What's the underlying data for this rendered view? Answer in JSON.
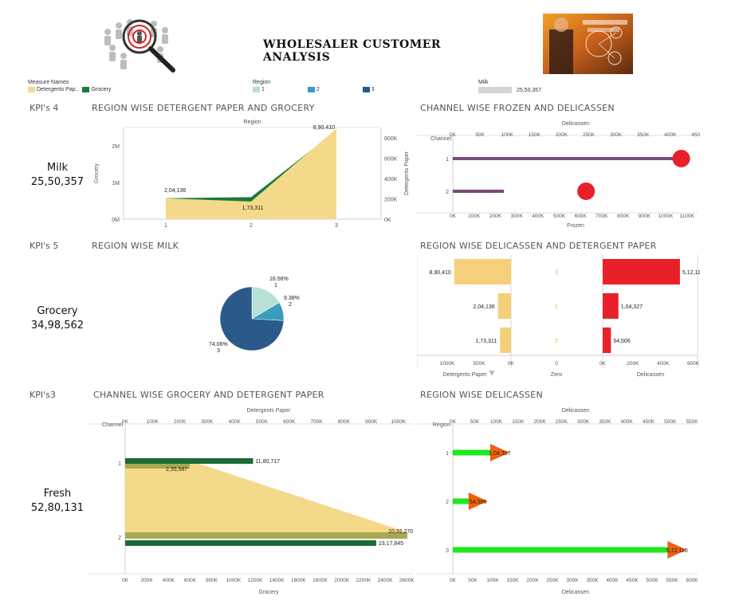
{
  "header": {
    "title": "WHOLESALER CUSTOMER ANALYSIS"
  },
  "legends": {
    "measure_names": {
      "title": "Measure Names",
      "items": [
        {
          "label": "Detergents Pap..",
          "color": "#f5d98b"
        },
        {
          "label": "Grocery",
          "color": "#1a7a3a"
        }
      ]
    },
    "region": {
      "title": "Region",
      "items": [
        {
          "label": "1",
          "color": "#b8e0d8"
        },
        {
          "label": "2",
          "color": "#3a9cbf"
        },
        {
          "label": "3",
          "color": "#2b5a8a"
        }
      ]
    },
    "milk": {
      "title": "Milk",
      "value": "25,50,357"
    }
  },
  "kpis": [
    {
      "section": "KPI's 4",
      "name": "Milk",
      "value": "25,50,357"
    },
    {
      "section": "KPI's 5",
      "name": "Grocery",
      "value": "34,98,562"
    },
    {
      "section": "KPI's3",
      "name": "Fresh",
      "value": "52,80,131"
    }
  ],
  "sections": {
    "s1": "REGION WISE DETERGENT PAPER AND GROCERY",
    "s2": "CHANNEL WISE FROZEN AND DELICASSEN",
    "s3": "REGION WISE MILK",
    "s4": "REGION WISE DELICASSEN AND DETERGENT PAPER",
    "s5": "CHANNEL WISE GROCERY AND DETERGENT PAPER",
    "s6": "REGION WISE DELICASSEN"
  },
  "chart_data": [
    {
      "id": "region_detergent_grocery",
      "type": "area",
      "xlabel": "Region",
      "categories": [
        "1",
        "2",
        "3"
      ],
      "series": [
        {
          "name": "Detergents Paper",
          "values": [
            204136,
            173311,
            890410
          ],
          "color": "#f5d98b",
          "labels": [
            "2,04,136",
            "1,73,311",
            "8,90,410"
          ]
        },
        {
          "name": "Grocery",
          "values": [
            570000,
            600000,
            2420000
          ],
          "color": "#1a7a3a"
        }
      ],
      "left_axis": {
        "label": "Grocery",
        "ticks": [
          "0M",
          "1M",
          "2M"
        ],
        "range": [
          0,
          2500000
        ]
      },
      "right_axis": {
        "label": "Detergents Paper",
        "ticks": [
          "0K",
          "200K",
          "400K",
          "600K",
          "800K"
        ],
        "range": [
          0,
          900000
        ]
      }
    },
    {
      "id": "channel_frozen_delicassen",
      "type": "bar",
      "ylabel": "Channel",
      "categories": [
        "1",
        "2"
      ],
      "series": [
        {
          "name": "Frozen",
          "values": [
            1080000,
            240000
          ],
          "color": "#7a4a7a"
        },
        {
          "name": "Delicassen",
          "values": [
            420000,
            245000
          ],
          "color": "#e8202a"
        }
      ],
      "top_axis": {
        "label": "Delicassen",
        "ticks": [
          "0K",
          "50K",
          "100K",
          "150K",
          "200K",
          "250K",
          "300K",
          "350K",
          "400K",
          "450K"
        ],
        "range": [
          0,
          450000
        ]
      },
      "bottom_axis": {
        "label": "Frozen",
        "ticks": [
          "0K",
          "100K",
          "200K",
          "300K",
          "400K",
          "500K",
          "600K",
          "700K",
          "800K",
          "900K",
          "1000K",
          "1100K"
        ],
        "range": [
          0,
          1150000
        ]
      }
    },
    {
      "id": "region_milk",
      "type": "pie",
      "slices": [
        {
          "region": "1",
          "percent": 16.56,
          "label": "16.56%",
          "color": "#b8e0d8"
        },
        {
          "region": "2",
          "percent": 9.38,
          "label": "9.38%",
          "color": "#3a9cbf"
        },
        {
          "region": "3",
          "percent": 74.06,
          "label": "74.06%",
          "color": "#2b5a8a"
        }
      ]
    },
    {
      "id": "region_delicassen_detergent",
      "type": "bar",
      "rows": [
        {
          "region": "3",
          "detergent": 890410,
          "detergent_label": "8,90,410",
          "delicassen": 512110,
          "delicassen_label": "5,12,110"
        },
        {
          "region": "1",
          "detergent": 204136,
          "detergent_label": "2,04,136",
          "delicassen": 104327,
          "delicassen_label": "1,04,327"
        },
        {
          "region": "2",
          "detergent": 173311,
          "detergent_label": "1,73,311",
          "delicassen": 54506,
          "delicassen_label": "54,506"
        }
      ],
      "left_axis": {
        "label": "Detergents Paper",
        "ticks": [
          "1000K",
          "500K",
          "0K"
        ],
        "range": [
          0,
          1000000
        ]
      },
      "middle_axis": {
        "label": "Zero",
        "ticks": [
          "0"
        ]
      },
      "right_axis": {
        "label": "Delicassen",
        "ticks": [
          "0K",
          "200K",
          "400K",
          "600K"
        ],
        "range": [
          0,
          650000
        ]
      }
    },
    {
      "id": "channel_grocery_detergent",
      "type": "bar",
      "ylabel": "Channel",
      "categories": [
        "1",
        "2"
      ],
      "series": [
        {
          "name": "Grocery",
          "values": [
            1180717,
            2317845
          ],
          "labels": [
            "11,80,717",
            "23,17,845"
          ],
          "color": "#1a6b35"
        },
        {
          "name": "Detergents Paper",
          "values": [
            235587,
            1032270
          ],
          "labels": [
            "2,35,587",
            "10,32,270"
          ],
          "color": "#f5d98b"
        }
      ],
      "top_axis": {
        "label": "Detergents Paper",
        "ticks": [
          "0K",
          "100K",
          "200K",
          "300K",
          "400K",
          "500K",
          "600K",
          "700K",
          "800K",
          "900K",
          "1000K"
        ],
        "range": [
          0,
          1000000
        ]
      },
      "bottom_axis": {
        "label": "Grocery",
        "ticks": [
          "0K",
          "200K",
          "400K",
          "600K",
          "800K",
          "1000K",
          "1200K",
          "1400K",
          "1600K",
          "1800K",
          "2000K",
          "2200K",
          "2400K",
          "2600K"
        ],
        "range": [
          0,
          2650000
        ]
      }
    },
    {
      "id": "region_delicassen",
      "type": "bar",
      "ylabel": "Region",
      "categories": [
        "1",
        "2",
        "3"
      ],
      "values": [
        104327,
        54506,
        512110
      ],
      "labels": [
        "1,04,327",
        "54,506",
        "5,12,110"
      ],
      "bar_color": "#1ee81e",
      "marker_color": "#f06010",
      "top_axis": {
        "label": "Delicassen",
        "ticks": [
          "0K",
          "50K",
          "100K",
          "150K",
          "200K",
          "250K",
          "300K",
          "350K",
          "400K",
          "450K",
          "500K",
          "550K"
        ],
        "range": [
          0,
          550000
        ]
      },
      "bottom_axis": {
        "label": "Delicassen",
        "ticks": [
          "0K",
          "50K",
          "100K",
          "150K",
          "200K",
          "250K",
          "300K",
          "350K",
          "400K",
          "450K",
          "500K",
          "550K",
          "600K"
        ],
        "range": [
          0,
          600000
        ]
      }
    }
  ]
}
